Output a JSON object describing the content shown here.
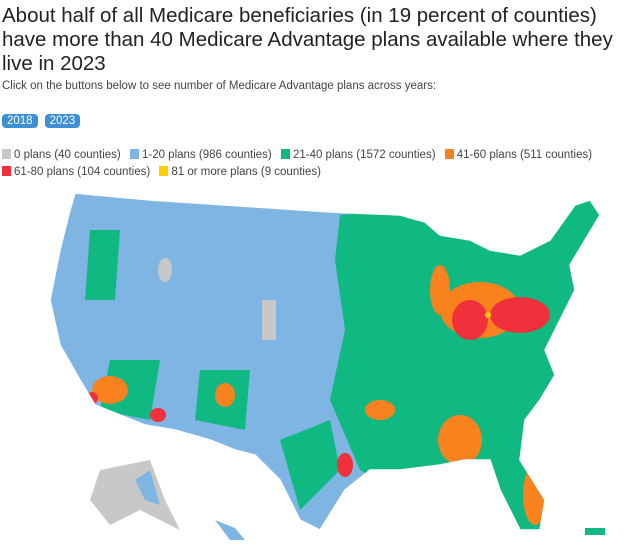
{
  "title": "About half of all Medicare beneficiaries (in 19 percent of counties) have more than 40 Medicare Advantage plans available where they live in 2023",
  "instruction": "Click on the buttons below to see number of Medicare Advantage plans across years:",
  "buttons": [
    "2018",
    "2023"
  ],
  "legend": [
    {
      "label": "0 plans (40 counties)",
      "color": "#c8c8c8"
    },
    {
      "label": "1-20 plans (986 counties)",
      "color": "#7fb5e2"
    },
    {
      "label": "21-40 plans (1572 counties)",
      "color": "#10b981"
    },
    {
      "label": "41-60 plans (511 counties)",
      "color": "#f7821e"
    },
    {
      "label": "61-80 plans (104 counties)",
      "color": "#f0303a"
    },
    {
      "label": "81 or more plans (9 counties)",
      "color": "#ffcc00"
    }
  ]
}
